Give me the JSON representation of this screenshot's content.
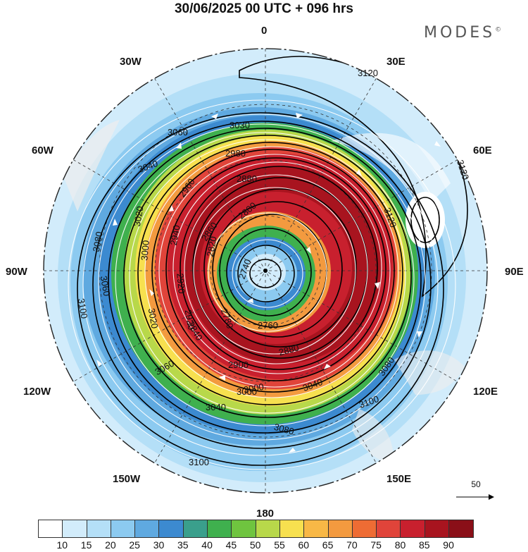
{
  "title": "30/06/2025  00 UTC  + 096 hrs",
  "brand": "MODES",
  "brand_mark": "©",
  "longitude_labels": {
    "lon_0": "0",
    "lon_30e": "30E",
    "lon_60e": "60E",
    "lon_90e": "90E",
    "lon_120e": "120E",
    "lon_150e": "150E",
    "lon_180": "180",
    "lon_150w": "150W",
    "lon_120w": "120W",
    "lon_90w": "90W",
    "lon_60w": "60W",
    "lon_30w": "30W"
  },
  "contour_labels": [
    "3120",
    "3120",
    "3120",
    "3100",
    "3100",
    "3100",
    "3080",
    "3080",
    "3080",
    "3060",
    "3060",
    "3060",
    "3040",
    "3040",
    "3040",
    "3020",
    "3020",
    "3000",
    "3000",
    "2980",
    "2960",
    "2940",
    "2920",
    "2920",
    "2900",
    "2880",
    "2880",
    "2860",
    "2840",
    "2820",
    "2800",
    "2780",
    "2760",
    "2740",
    "3030",
    "3000"
  ],
  "vector_reference": {
    "value": "50"
  },
  "colorbar": {
    "colors": [
      "#ffffff",
      "#d2ecfb",
      "#b4dff7",
      "#8ccaf0",
      "#5fa9e0",
      "#3c8ad0",
      "#3a9f8c",
      "#3fb04e",
      "#6fc43f",
      "#b8d84a",
      "#f7e04f",
      "#f8b846",
      "#f39a3f",
      "#ee6c34",
      "#e0443a",
      "#c8202e",
      "#a8141f",
      "#8a0f18"
    ],
    "tick_labels": [
      "10",
      "15",
      "20",
      "25",
      "30",
      "35",
      "40",
      "45",
      "50",
      "55",
      "60",
      "65",
      "70",
      "75",
      "80",
      "85",
      "90"
    ]
  }
}
